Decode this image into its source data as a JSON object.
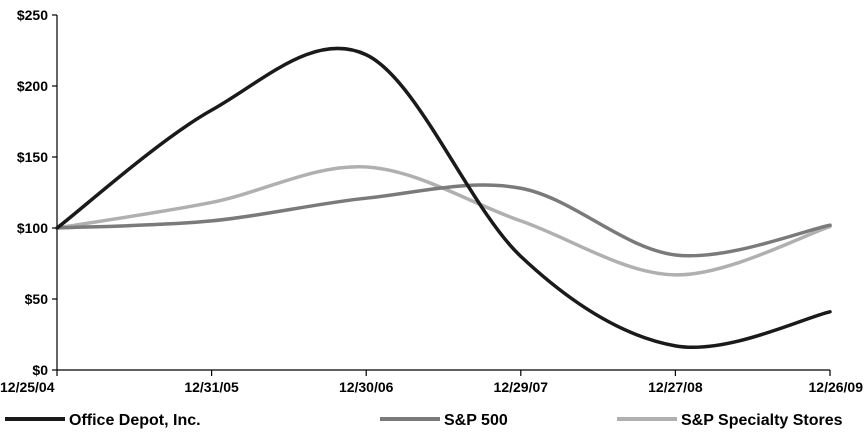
{
  "chart_data": {
    "type": "line",
    "title": "",
    "xlabel": "",
    "ylabel": "",
    "categories": [
      "12/25/04",
      "12/31/05",
      "12/30/06",
      "12/29/07",
      "12/27/08",
      "12/26/09"
    ],
    "y_ticks": [
      "$0",
      "$50",
      "$100",
      "$150",
      "$200",
      "$250"
    ],
    "ylim": [
      0,
      250
    ],
    "grid": false,
    "legend_position": "bottom",
    "series": [
      {
        "name": "Office Depot, Inc.",
        "color": "#1a1a1a",
        "values": [
          100,
          183,
          222,
          80,
          17,
          41
        ]
      },
      {
        "name": "S&P 500",
        "color": "#7a7a7a",
        "values": [
          100,
          105,
          121,
          128,
          81,
          102
        ]
      },
      {
        "name": "S&P Specialty Stores",
        "color": "#b0b0b0",
        "values": [
          100,
          118,
          143,
          105,
          67,
          101
        ]
      }
    ]
  }
}
